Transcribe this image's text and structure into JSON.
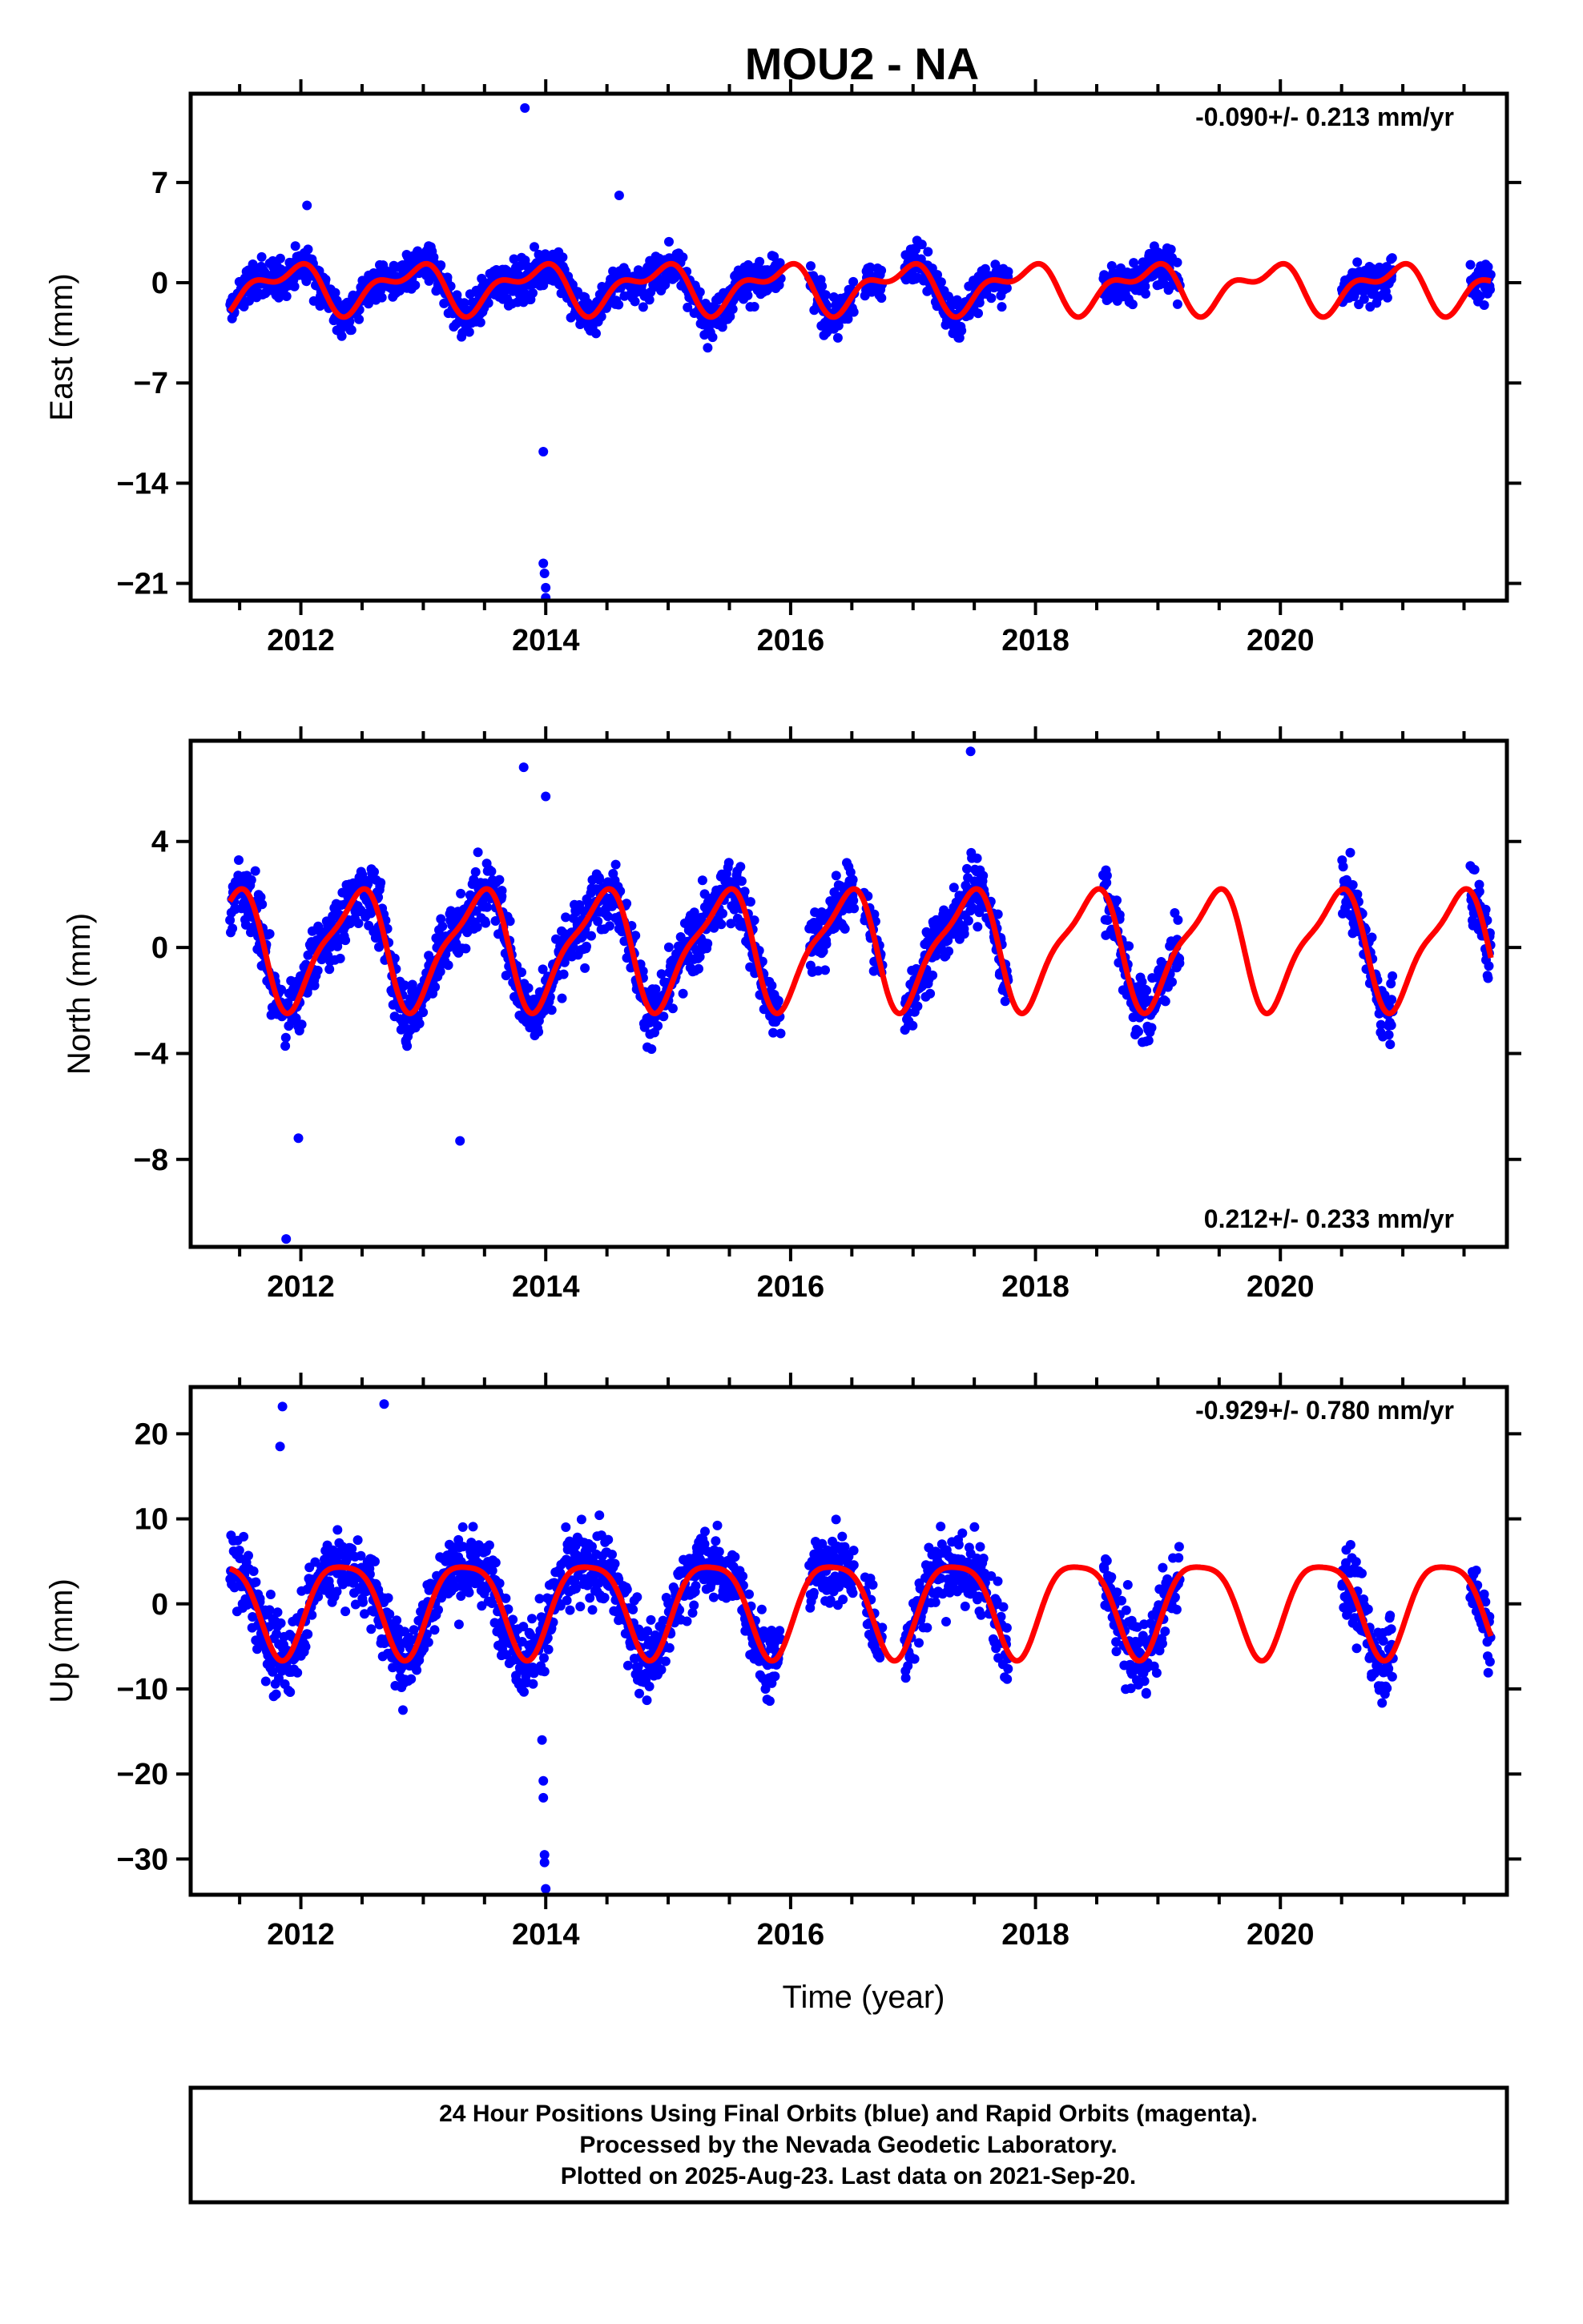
{
  "title": "MOU2 - NA",
  "colors": {
    "points": "#0000ff",
    "model": "#ff0000",
    "frame": "#000000"
  },
  "chart_data": [
    {
      "type": "scatter",
      "ylabel": "East (mm)",
      "xlim": [
        2011.1,
        2021.85
      ],
      "ylim": [
        -22.2,
        13.2
      ],
      "yticks": [
        "7",
        "0",
        "-7",
        "-14",
        "-21"
      ],
      "ytick_values": [
        7,
        0,
        -7,
        -14,
        -21
      ],
      "xticks": [
        "2012",
        "2014",
        "2016",
        "2018",
        "2020"
      ],
      "xtick_values": [
        2012,
        2014,
        2016,
        2018,
        2020
      ],
      "rate_label": "-0.090+/- 0.213 mm/yr",
      "rate_position": "top-right",
      "seasonal": {
        "mean": -0.3,
        "amp1": 1.4,
        "amp2": 0.8,
        "phase1": 2.2,
        "phase2": 0.6,
        "noise": 1.3
      },
      "outliers": [
        [
          2013.83,
          12.2
        ],
        [
          2013.98,
          -11.8
        ],
        [
          2013.98,
          -19.6
        ],
        [
          2013.99,
          -20.3
        ],
        [
          2014.0,
          -21.3
        ],
        [
          2014.0,
          -22.0
        ],
        [
          2014.6,
          6.1
        ],
        [
          2012.05,
          5.4
        ]
      ]
    },
    {
      "type": "scatter",
      "ylabel": "North (mm)",
      "xlim": [
        2011.1,
        2021.85
      ],
      "ylim": [
        -11.3,
        7.8
      ],
      "yticks": [
        "4",
        "0",
        "-4",
        "-8"
      ],
      "ytick_values": [
        4,
        0,
        -4,
        -8
      ],
      "xticks": [
        "2012",
        "2014",
        "2016",
        "2018",
        "2020"
      ],
      "xtick_values": [
        2012,
        2014,
        2016,
        2018,
        2020
      ],
      "rate_label": "0.212+/- 0.233 mm/yr",
      "rate_position": "bottom-right",
      "seasonal": {
        "mean": 0.0,
        "amp1": 2.1,
        "amp2": 0.6,
        "phase1": -1.2,
        "phase2": 0.4,
        "noise": 1.1
      },
      "outliers": [
        [
          2013.82,
          6.8
        ],
        [
          2014.0,
          5.7
        ],
        [
          2011.88,
          -11.0
        ],
        [
          2013.3,
          -7.3
        ],
        [
          2011.98,
          -7.2
        ],
        [
          2017.47,
          7.4
        ]
      ]
    },
    {
      "type": "scatter",
      "ylabel": "Up (mm)",
      "xlabel": "Time (year)",
      "xlim": [
        2011.1,
        2021.85
      ],
      "ylim": [
        -34.2,
        25.5
      ],
      "yticks": [
        "20",
        "10",
        "0",
        "-10",
        "-20",
        "-30"
      ],
      "ytick_values": [
        20,
        10,
        0,
        -10,
        -20,
        -30
      ],
      "xticks": [
        "2012",
        "2014",
        "2016",
        "2018",
        "2020"
      ],
      "xtick_values": [
        2012,
        2014,
        2016,
        2018,
        2020
      ],
      "rate_label": "-0.929+/- 0.780 mm/yr",
      "rate_position": "top-right",
      "seasonal": {
        "mean": 0.0,
        "amp1": 5.5,
        "amp2": 1.2,
        "phase1": -0.6,
        "phase2": 0.3,
        "noise": 4.0
      },
      "outliers": [
        [
          2013.97,
          -16.0
        ],
        [
          2013.98,
          -20.8
        ],
        [
          2013.98,
          -22.8
        ],
        [
          2013.99,
          -29.5
        ],
        [
          2013.99,
          -30.4
        ],
        [
          2014.0,
          -33.5
        ],
        [
          2011.85,
          23.2
        ],
        [
          2012.68,
          23.5
        ],
        [
          2011.83,
          18.5
        ]
      ]
    }
  ],
  "data_segments": [
    [
      2011.42,
      2015.92
    ],
    [
      2016.15,
      2016.52
    ],
    [
      2016.6,
      2016.75
    ],
    [
      2016.93,
      2017.6
    ],
    [
      2017.62,
      2017.78
    ],
    [
      2018.55,
      2019.18
    ],
    [
      2020.5,
      2020.92
    ],
    [
      2021.55,
      2021.72
    ]
  ],
  "footer": {
    "line1": "24 Hour Positions Using Final Orbits (blue) and Rapid Orbits (magenta).",
    "line2": "Processed by the Nevada Geodetic Laboratory.",
    "line3": "Plotted on 2025-Aug-23. Last data on 2021-Sep-20."
  }
}
